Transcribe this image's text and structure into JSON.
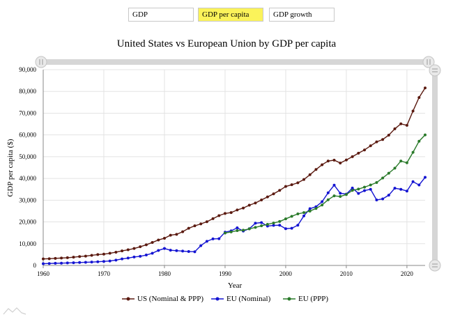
{
  "tabs": [
    {
      "label": "GDP",
      "active": false
    },
    {
      "label": "GDP per capita",
      "active": true
    },
    {
      "label": "GDP growth",
      "active": false
    }
  ],
  "chart_data": {
    "type": "line",
    "title": "United States vs European Union by GDP per capita",
    "xlabel": "Year",
    "ylabel": "GDP per capita ($)",
    "xlim": [
      1960,
      2023
    ],
    "ylim": [
      0,
      90000
    ],
    "x_ticks": [
      1960,
      1970,
      1980,
      1990,
      2000,
      2010,
      2020
    ],
    "y_ticks": [
      0,
      10000,
      20000,
      30000,
      40000,
      50000,
      60000,
      70000,
      80000,
      90000
    ],
    "y_tick_labels": [
      "0",
      "10,000",
      "20,000",
      "30,000",
      "40,000",
      "50,000",
      "60,000",
      "70,000",
      "80,000",
      "90,000"
    ],
    "grid": true,
    "legend_position": "bottom",
    "x": [
      1960,
      1961,
      1962,
      1963,
      1964,
      1965,
      1966,
      1967,
      1968,
      1969,
      1970,
      1971,
      1972,
      1973,
      1974,
      1975,
      1976,
      1977,
      1978,
      1979,
      1980,
      1981,
      1982,
      1983,
      1984,
      1985,
      1986,
      1987,
      1988,
      1989,
      1990,
      1991,
      1992,
      1993,
      1994,
      1995,
      1996,
      1997,
      1998,
      1999,
      2000,
      2001,
      2002,
      2003,
      2004,
      2005,
      2006,
      2007,
      2008,
      2009,
      2010,
      2011,
      2012,
      2013,
      2014,
      2015,
      2016,
      2017,
      2018,
      2019,
      2020,
      2021,
      2022,
      2023
    ],
    "series": [
      {
        "name": "US (Nominal & PPP)",
        "color": "#5b1a10",
        "values": [
          3000,
          3100,
          3250,
          3400,
          3550,
          3800,
          4100,
          4300,
          4650,
          5000,
          5200,
          5600,
          6100,
          6700,
          7200,
          7800,
          8600,
          9500,
          10550,
          11700,
          12500,
          13900,
          14300,
          15500,
          17100,
          18200,
          19100,
          20100,
          21500,
          22900,
          23900,
          24300,
          25500,
          26400,
          27700,
          28700,
          30100,
          31500,
          32900,
          34500,
          36300,
          37100,
          38000,
          39500,
          41700,
          44100,
          46300,
          48000,
          48400,
          47100,
          48500,
          50000,
          51600,
          53100,
          55000,
          56800,
          57900,
          59900,
          62800,
          65100,
          64400,
          71000,
          77200,
          81600
        ]
      },
      {
        "name": "EU (Nominal)",
        "color": "#1414d2",
        "values": [
          800,
          900,
          1000,
          1050,
          1150,
          1250,
          1350,
          1450,
          1550,
          1700,
          1850,
          2050,
          2450,
          3000,
          3400,
          3900,
          4200,
          4800,
          5600,
          6900,
          7800,
          7000,
          6800,
          6600,
          6400,
          6300,
          9100,
          11100,
          12200,
          12300,
          15300,
          15900,
          17300,
          15800,
          16900,
          19400,
          19700,
          18100,
          18400,
          18500,
          16900,
          17100,
          18500,
          22800,
          26100,
          27000,
          29300,
          33400,
          36900,
          33200,
          32800,
          35600,
          33100,
          34400,
          35000,
          30100,
          30600,
          32300,
          35500,
          35000,
          34200,
          38500,
          37000,
          40500
        ]
      },
      {
        "name": "EU (PPP)",
        "color": "#2a7a2a",
        "values": [
          null,
          null,
          null,
          null,
          null,
          null,
          null,
          null,
          null,
          null,
          null,
          null,
          null,
          null,
          null,
          null,
          null,
          null,
          null,
          null,
          null,
          null,
          null,
          null,
          null,
          null,
          null,
          null,
          null,
          null,
          14900,
          15400,
          16000,
          16200,
          16800,
          17500,
          18200,
          18900,
          19500,
          20200,
          21400,
          22600,
          23700,
          24300,
          25000,
          26200,
          27800,
          30200,
          32000,
          31700,
          32600,
          34500,
          35100,
          36000,
          37000,
          38100,
          40200,
          42400,
          44700,
          48000,
          47200,
          52000,
          57100,
          60000
        ]
      }
    ]
  }
}
